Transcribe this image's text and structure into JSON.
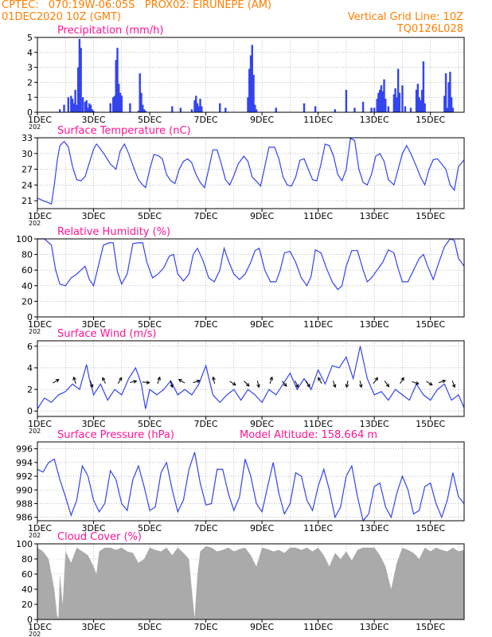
{
  "header": {
    "line1": "CPTEC:   070:19W-06:05S   PROX02: EIRUNEPE (AM)",
    "line2": "01DEC2020 10Z (GMT)",
    "grid_note": "Vertical Grid Line: 10Z",
    "code": "TQ0126L028"
  },
  "colors": {
    "header": "#ff7f00",
    "title": "#ff1493",
    "series": "#3344ee",
    "cloud": "#aaaaaa",
    "grid": "#999999"
  },
  "x_axis": {
    "tick_labels": [
      "1DEC",
      "3DEC",
      "5DEC",
      "7DEC",
      "9DEC",
      "11DEC",
      "13DEC",
      "15DEC"
    ],
    "tick_days": [
      1,
      3,
      5,
      7,
      9,
      11,
      13,
      15
    ],
    "start_day": 1,
    "end_day": 16.2,
    "year_fragment": "202"
  },
  "chart_data": [
    {
      "type": "bar",
      "title": "Precipitation (mm/h)",
      "ylim": [
        0,
        5
      ],
      "yticks": [
        0,
        1,
        2,
        3,
        4,
        5
      ],
      "x": [
        1.8,
        1.95,
        2.1,
        2.2,
        2.25,
        2.3,
        2.35,
        2.4,
        2.45,
        2.5,
        2.55,
        2.62,
        2.7,
        2.75,
        2.8,
        2.85,
        2.9,
        2.95,
        3.0,
        3.6,
        3.7,
        3.75,
        3.8,
        3.85,
        3.9,
        3.95,
        4.0,
        4.3,
        4.6,
        4.65,
        4.7,
        4.75,
        4.8,
        4.85,
        5.8,
        6.1,
        6.5,
        6.6,
        6.65,
        6.7,
        6.75,
        6.8,
        6.85,
        7.5,
        7.7,
        8.5,
        8.55,
        8.6,
        8.65,
        8.7,
        8.75,
        8.8,
        9.5,
        10.5,
        10.9,
        11.6,
        12.0,
        12.3,
        12.6,
        12.9,
        13.0,
        13.1,
        13.15,
        13.2,
        13.25,
        13.3,
        13.35,
        13.4,
        13.5,
        13.7,
        13.75,
        13.8,
        13.85,
        13.9,
        14.0,
        14.1,
        14.3,
        14.5,
        14.55,
        14.6,
        14.65,
        14.7,
        14.75,
        14.8,
        15.5,
        15.55,
        15.6,
        15.65,
        15.7,
        15.75,
        15.8
      ],
      "values": [
        0.2,
        0.5,
        1.0,
        1.1,
        0.9,
        0.6,
        1.5,
        0.5,
        3.0,
        4.9,
        4.3,
        1.0,
        0.7,
        0.8,
        0.3,
        0.6,
        0.5,
        0.2,
        0.1,
        0.6,
        1.0,
        1.1,
        3.5,
        4.3,
        1.9,
        1.3,
        1.1,
        0.6,
        0.1,
        2.6,
        1.3,
        0.5,
        0.2,
        0.1,
        0.4,
        0.3,
        0.2,
        0.8,
        1.1,
        0.6,
        0.4,
        0.9,
        0.4,
        0.6,
        0.3,
        1.0,
        2.9,
        3.8,
        4.5,
        2.5,
        0.5,
        0.2,
        0.3,
        0.6,
        0.4,
        0.2,
        1.5,
        0.3,
        0.7,
        0.3,
        0.3,
        0.9,
        1.3,
        1.5,
        1.8,
        1.4,
        2.2,
        0.9,
        0.4,
        1.2,
        1.6,
        1.0,
        2.9,
        1.3,
        1.8,
        0.4,
        0.3,
        1.5,
        1.9,
        1.0,
        0.8,
        1.5,
        3.4,
        0.6,
        1.1,
        2.6,
        0.3,
        2.0,
        2.7,
        1.0,
        0.3
      ]
    },
    {
      "type": "line",
      "title": "Surface Temperature (nC)",
      "ylim": [
        19.5,
        33
      ],
      "yticks": [
        21,
        24,
        27,
        30,
        33
      ],
      "x": [
        1.0,
        1.2,
        1.4,
        1.5,
        1.6,
        1.7,
        1.8,
        1.95,
        2.1,
        2.25,
        2.4,
        2.55,
        2.7,
        2.85,
        3.0,
        3.1,
        3.2,
        3.4,
        3.6,
        3.8,
        3.95,
        4.1,
        4.25,
        4.45,
        4.6,
        4.75,
        4.85,
        5.0,
        5.15,
        5.3,
        5.45,
        5.6,
        5.75,
        5.9,
        6.05,
        6.2,
        6.35,
        6.5,
        6.65,
        6.8,
        6.95,
        7.1,
        7.25,
        7.4,
        7.55,
        7.7,
        7.85,
        8.0,
        8.15,
        8.35,
        8.5,
        8.65,
        8.8,
        8.95,
        9.1,
        9.25,
        9.45,
        9.6,
        9.75,
        9.9,
        10.05,
        10.2,
        10.35,
        10.5,
        10.65,
        10.8,
        10.95,
        11.1,
        11.25,
        11.4,
        11.55,
        11.7,
        11.85,
        12.0,
        12.15,
        12.3,
        12.45,
        12.6,
        12.75,
        12.9,
        13.05,
        13.2,
        13.35,
        13.5,
        13.7,
        13.85,
        14.0,
        14.15,
        14.3,
        14.5,
        14.65,
        14.8,
        14.95,
        15.1,
        15.25,
        15.4,
        15.55,
        15.7,
        15.85,
        16.0,
        16.2
      ],
      "values": [
        21.5,
        21.0,
        20.6,
        20.4,
        24.0,
        28.5,
        31.5,
        32.3,
        31.3,
        27.5,
        25.0,
        24.8,
        25.6,
        28.2,
        30.8,
        31.8,
        31.2,
        29.7,
        28.0,
        27.0,
        30.5,
        31.8,
        30.0,
        27.0,
        25.0,
        24.0,
        23.5,
        27.0,
        29.8,
        29.6,
        29.0,
        26.0,
        24.8,
        24.3,
        27.0,
        28.5,
        29.0,
        28.2,
        26.0,
        24.5,
        23.5,
        27.0,
        30.7,
        30.7,
        28.0,
        25.0,
        24.0,
        25.8,
        28.0,
        29.5,
        28.5,
        25.5,
        24.7,
        23.8,
        27.5,
        31.2,
        31.2,
        29.0,
        25.5,
        24.0,
        23.8,
        25.5,
        28.7,
        29.0,
        27.0,
        25.0,
        24.8,
        28.0,
        31.8,
        31.5,
        29.5,
        26.0,
        24.8,
        27.0,
        32.9,
        32.5,
        27.0,
        24.5,
        24.0,
        26.0,
        29.5,
        30.0,
        28.5,
        25.0,
        24.0,
        27.0,
        30.0,
        31.5,
        30.0,
        27.5,
        25.5,
        24.0,
        27.0,
        28.8,
        29.0,
        28.0,
        27.0,
        24.0,
        23.0,
        27.5,
        28.8
      ]
    },
    {
      "type": "line",
      "title": "Relative Humidity (%)",
      "ylim": [
        0,
        100
      ],
      "yticks": [
        0,
        20,
        40,
        60,
        80,
        100
      ],
      "x": [
        1.0,
        1.25,
        1.5,
        1.65,
        1.8,
        2.0,
        2.2,
        2.4,
        2.55,
        2.7,
        2.85,
        3.0,
        3.15,
        3.35,
        3.55,
        3.7,
        3.85,
        4.0,
        4.2,
        4.4,
        4.6,
        4.75,
        4.9,
        5.1,
        5.3,
        5.5,
        5.7,
        5.85,
        6.0,
        6.2,
        6.4,
        6.55,
        6.7,
        6.9,
        7.1,
        7.3,
        7.5,
        7.65,
        7.8,
        8.0,
        8.2,
        8.4,
        8.6,
        8.75,
        8.9,
        9.1,
        9.3,
        9.5,
        9.65,
        9.8,
        10.0,
        10.2,
        10.4,
        10.6,
        10.75,
        10.9,
        11.1,
        11.3,
        11.5,
        11.7,
        11.85,
        12.0,
        12.2,
        12.4,
        12.6,
        12.75,
        12.9,
        13.1,
        13.3,
        13.5,
        13.7,
        13.85,
        14.0,
        14.2,
        14.4,
        14.6,
        14.75,
        14.9,
        15.1,
        15.3,
        15.5,
        15.7,
        15.85,
        16.0,
        16.2
      ],
      "values": [
        100,
        100,
        92,
        60,
        42,
        40,
        50,
        55,
        60,
        65,
        48,
        40,
        62,
        92,
        95,
        95,
        58,
        42,
        55,
        94,
        95,
        95,
        70,
        50,
        55,
        63,
        78,
        80,
        55,
        46,
        55,
        80,
        88,
        72,
        50,
        45,
        60,
        88,
        72,
        55,
        48,
        55,
        70,
        85,
        88,
        60,
        45,
        45,
        60,
        82,
        84,
        70,
        50,
        40,
        52,
        86,
        82,
        62,
        45,
        35,
        40,
        65,
        85,
        85,
        60,
        45,
        50,
        60,
        70,
        86,
        82,
        62,
        45,
        45,
        60,
        75,
        80,
        65,
        48,
        70,
        90,
        100,
        98,
        75,
        65
      ]
    },
    {
      "type": "line",
      "title": "Surface Wind (m/s)",
      "ylim": [
        -0.5,
        6.5
      ],
      "yticks": [
        0,
        2,
        4,
        6
      ],
      "x": [
        1.0,
        1.25,
        1.5,
        1.75,
        2.0,
        2.25,
        2.5,
        2.75,
        2.85,
        3.0,
        3.25,
        3.5,
        3.75,
        4.0,
        4.25,
        4.5,
        4.7,
        4.85,
        5.0,
        5.25,
        5.5,
        5.75,
        6.0,
        6.25,
        6.5,
        6.75,
        7.0,
        7.25,
        7.5,
        7.75,
        8.0,
        8.25,
        8.5,
        8.75,
        9.0,
        9.25,
        9.5,
        9.75,
        10.0,
        10.25,
        10.5,
        10.75,
        11.0,
        11.25,
        11.5,
        11.75,
        12.0,
        12.25,
        12.5,
        12.75,
        13.0,
        13.25,
        13.5,
        13.75,
        14.0,
        14.25,
        14.5,
        14.75,
        15.0,
        15.25,
        15.5,
        15.75,
        16.0,
        16.2
      ],
      "values": [
        0.2,
        1.2,
        0.8,
        1.5,
        1.8,
        2.5,
        2.0,
        4.3,
        3.0,
        1.5,
        2.5,
        1.0,
        2.0,
        1.5,
        3.0,
        4.0,
        2.5,
        0.2,
        2.0,
        1.5,
        2.0,
        2.8,
        1.5,
        2.0,
        1.5,
        2.5,
        4.2,
        1.5,
        0.8,
        1.5,
        2.0,
        1.0,
        2.0,
        1.5,
        0.8,
        2.0,
        1.5,
        2.5,
        3.5,
        2.0,
        3.0,
        2.0,
        3.8,
        2.5,
        4.2,
        4.0,
        5.0,
        3.0,
        6.0,
        3.0,
        1.5,
        1.8,
        1.0,
        2.0,
        1.5,
        1.0,
        2.5,
        1.5,
        1.0,
        2.0,
        2.5,
        1.0,
        1.5,
        0.3
      ],
      "arrows": [
        {
          "day": 1.6,
          "u": 0.8,
          "v": 0.5
        },
        {
          "day": 2.35,
          "u": -0.3,
          "v": 0.9
        },
        {
          "day": 2.9,
          "u": 0.3,
          "v": -0.9
        },
        {
          "day": 3.4,
          "u": -0.4,
          "v": 0.8
        },
        {
          "day": 3.9,
          "u": 0.5,
          "v": 0.8
        },
        {
          "day": 4.35,
          "u": 0.9,
          "v": 0.2
        },
        {
          "day": 4.8,
          "u": 0.95,
          "v": -0.1
        },
        {
          "day": 5.3,
          "u": 0.3,
          "v": 0.9
        },
        {
          "day": 5.75,
          "u": 0.3,
          "v": -0.9
        },
        {
          "day": 6.2,
          "u": -0.8,
          "v": 0.5
        },
        {
          "day": 6.6,
          "u": 0.9,
          "v": 0.3
        },
        {
          "day": 7.3,
          "u": -0.2,
          "v": 0.9
        },
        {
          "day": 7.9,
          "u": 0.8,
          "v": -0.5
        },
        {
          "day": 8.4,
          "u": 0.7,
          "v": -0.7
        },
        {
          "day": 8.85,
          "u": 0.2,
          "v": -0.9
        },
        {
          "day": 9.3,
          "u": 0.3,
          "v": 0.9
        },
        {
          "day": 9.75,
          "u": 0.6,
          "v": -0.7
        },
        {
          "day": 10.2,
          "u": 0.4,
          "v": -0.9
        },
        {
          "day": 10.6,
          "u": 0.5,
          "v": -0.85
        },
        {
          "day": 11.1,
          "u": -0.5,
          "v": 0.8
        },
        {
          "day": 11.55,
          "u": 0.3,
          "v": -0.9
        },
        {
          "day": 12.05,
          "u": -0.2,
          "v": -0.9
        },
        {
          "day": 12.5,
          "u": 0.2,
          "v": -0.9
        },
        {
          "day": 13.0,
          "u": 0.6,
          "v": 0.8
        },
        {
          "day": 13.4,
          "u": 0.6,
          "v": -0.8
        },
        {
          "day": 13.95,
          "u": 0.5,
          "v": 0.8
        },
        {
          "day": 14.4,
          "u": 0.9,
          "v": -0.3
        },
        {
          "day": 14.9,
          "u": 0.8,
          "v": -0.5
        },
        {
          "day": 15.35,
          "u": 0.9,
          "v": 0.3
        },
        {
          "day": 15.8,
          "u": 0.3,
          "v": -0.9
        }
      ]
    },
    {
      "type": "line",
      "title": "Surface Pressure (hPa)",
      "annotation": "Model Altitude: 158.664 m",
      "ylim": [
        985.5,
        997
      ],
      "yticks": [
        986,
        988,
        990,
        992,
        994,
        996
      ],
      "x": [
        1.0,
        1.2,
        1.4,
        1.6,
        1.8,
        2.0,
        2.2,
        2.4,
        2.6,
        2.8,
        3.0,
        3.2,
        3.4,
        3.6,
        3.8,
        4.0,
        4.2,
        4.4,
        4.6,
        4.8,
        5.0,
        5.2,
        5.4,
        5.6,
        5.8,
        6.0,
        6.2,
        6.4,
        6.6,
        6.8,
        7.0,
        7.2,
        7.4,
        7.6,
        7.8,
        8.0,
        8.2,
        8.4,
        8.6,
        8.8,
        9.0,
        9.2,
        9.4,
        9.6,
        9.8,
        10.0,
        10.2,
        10.4,
        10.6,
        10.8,
        11.0,
        11.2,
        11.4,
        11.6,
        11.8,
        12.0,
        12.2,
        12.4,
        12.6,
        12.8,
        13.0,
        13.2,
        13.4,
        13.6,
        13.8,
        14.0,
        14.2,
        14.4,
        14.6,
        14.8,
        15.0,
        15.2,
        15.4,
        15.6,
        15.8,
        16.0,
        16.2
      ],
      "values": [
        993.0,
        992.6,
        994.0,
        994.5,
        991.5,
        989.0,
        986.3,
        988.5,
        993.5,
        992.0,
        988.5,
        986.8,
        988.0,
        992.8,
        991.5,
        988.0,
        987.0,
        991.5,
        993.5,
        990.5,
        987.0,
        987.5,
        992.5,
        994.0,
        990.0,
        986.8,
        988.5,
        993.0,
        995.5,
        991.0,
        987.8,
        988.0,
        993.0,
        993.0,
        989.5,
        987.0,
        989.0,
        994.5,
        992.0,
        988.0,
        986.8,
        990.5,
        994.0,
        989.5,
        986.5,
        988.0,
        992.5,
        992.0,
        988.5,
        987.0,
        990.5,
        993.0,
        990.0,
        986.0,
        987.5,
        992.0,
        993.5,
        989.0,
        985.5,
        986.5,
        990.5,
        991.0,
        987.5,
        986.0,
        989.5,
        992.0,
        990.0,
        986.5,
        987.0,
        990.5,
        991.0,
        988.0,
        986.0,
        988.5,
        992.5,
        989.0,
        988.0
      ]
    },
    {
      "type": "area",
      "title": "Cloud Cover (%)",
      "ylim": [
        0,
        100
      ],
      "yticks": [
        0,
        20,
        40,
        60,
        80,
        100
      ],
      "x": [
        1.0,
        1.2,
        1.4,
        1.6,
        1.7,
        1.75,
        1.8,
        1.9,
        2.0,
        2.2,
        2.4,
        2.6,
        2.8,
        3.0,
        3.1,
        3.2,
        3.4,
        3.6,
        3.8,
        4.0,
        4.2,
        4.4,
        4.6,
        4.8,
        5.0,
        5.2,
        5.4,
        5.6,
        5.8,
        6.0,
        6.2,
        6.4,
        6.5,
        6.6,
        6.7,
        6.8,
        7.0,
        7.2,
        7.4,
        7.6,
        7.8,
        8.0,
        8.2,
        8.4,
        8.6,
        8.8,
        9.0,
        9.2,
        9.4,
        9.6,
        9.8,
        10.0,
        10.2,
        10.4,
        10.6,
        10.8,
        11.0,
        11.2,
        11.4,
        11.6,
        11.8,
        12.0,
        12.2,
        12.4,
        12.6,
        12.8,
        13.0,
        13.2,
        13.4,
        13.6,
        13.8,
        14.0,
        14.2,
        14.4,
        14.6,
        14.8,
        15.0,
        15.2,
        15.4,
        15.6,
        15.8,
        16.0,
        16.2
      ],
      "values": [
        95,
        90,
        80,
        40,
        5,
        2,
        60,
        20,
        90,
        75,
        95,
        90,
        85,
        70,
        60,
        90,
        95,
        95,
        92,
        95,
        90,
        88,
        75,
        80,
        95,
        92,
        90,
        95,
        85,
        95,
        88,
        80,
        40,
        2,
        60,
        90,
        97,
        95,
        90,
        92,
        95,
        90,
        93,
        95,
        85,
        70,
        95,
        93,
        90,
        92,
        88,
        95,
        95,
        92,
        95,
        90,
        95,
        85,
        70,
        88,
        80,
        90,
        78,
        92,
        95,
        95,
        95,
        85,
        70,
        40,
        75,
        95,
        92,
        88,
        80,
        95,
        90,
        95,
        92,
        90,
        95,
        90,
        92
      ]
    }
  ]
}
